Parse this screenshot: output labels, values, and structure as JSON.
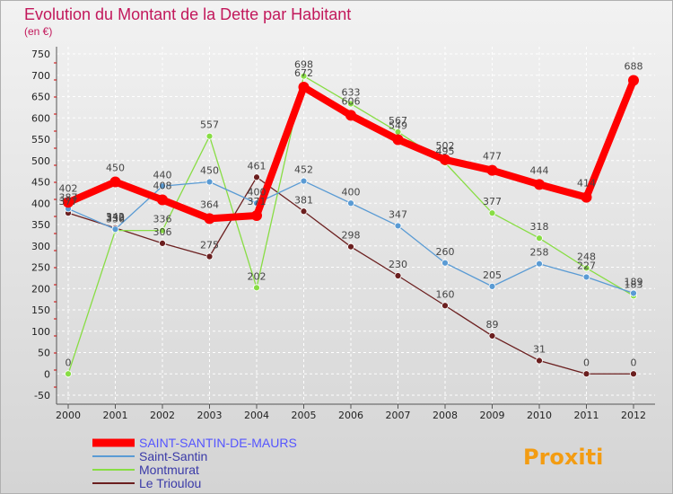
{
  "chart_data": {
    "type": "line",
    "title": "Evolution du Montant de la Dette par Habitant",
    "subtitle": "(en €)",
    "categories": [
      "2000",
      "2001",
      "2002",
      "2003",
      "2004",
      "2005",
      "2006",
      "2007",
      "2008",
      "2009",
      "2010",
      "2011",
      "2012"
    ],
    "ylim": [
      -50,
      750
    ],
    "yticks": [
      -50,
      0,
      50,
      100,
      150,
      200,
      250,
      300,
      350,
      400,
      450,
      500,
      550,
      600,
      650,
      700,
      750
    ],
    "grid": true,
    "legend_position": "bottom-left",
    "series": [
      {
        "name": "SAINT-SANTIN-DE-MAURS",
        "color": "#ff0000",
        "values": [
          402,
          450,
          408,
          364,
          371,
          672,
          606,
          549,
          502,
          477,
          444,
          414,
          688
        ]
      },
      {
        "name": "Saint-Santin",
        "color": "#5a9bd4",
        "values": [
          387,
          339,
          440,
          450,
          400,
          452,
          400,
          347,
          260,
          205,
          258,
          227,
          189
        ]
      },
      {
        "name": "Montmurat",
        "color": "#88dd44",
        "values": [
          0,
          336,
          336,
          557,
          202,
          698,
          633,
          567,
          495,
          377,
          318,
          248,
          183
        ]
      },
      {
        "name": "Le Trioulou",
        "color": "#6b1f1f",
        "values": [
          377,
          342,
          306,
          275,
          461,
          381,
          298,
          230,
          160,
          89,
          31,
          0,
          0
        ]
      }
    ]
  },
  "branding": {
    "logo_text": "Proxiti"
  }
}
